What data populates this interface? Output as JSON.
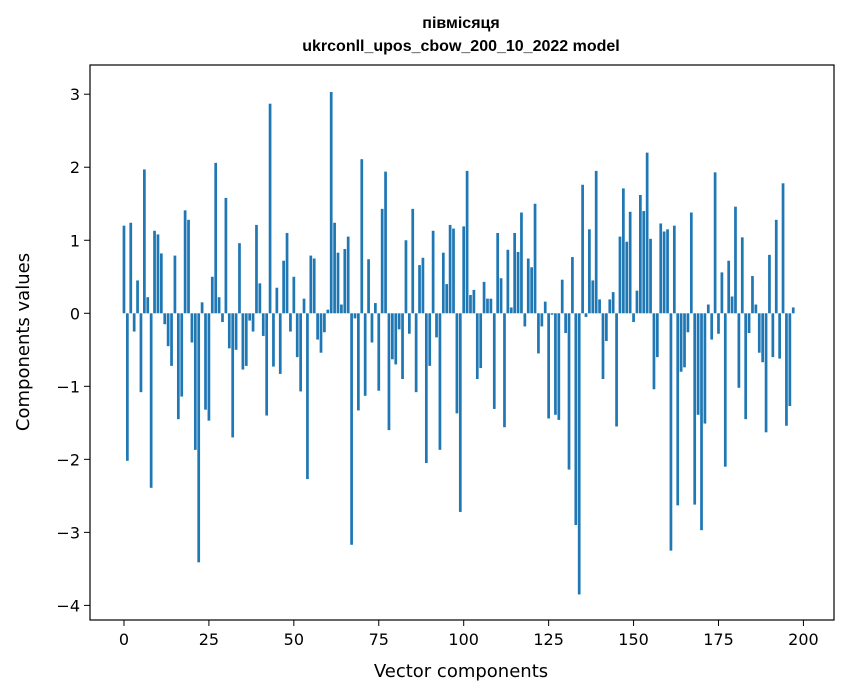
{
  "chart_data": {
    "type": "bar",
    "title_line1": "півмісяця",
    "title_line2": "ukrconll_upos_cbow_200_10_2022 model",
    "xlabel": "Vector components",
    "ylabel": "Components values",
    "xlim": [
      -10,
      209
    ],
    "ylim": [
      -4.2,
      3.4
    ],
    "xticks": [
      0,
      25,
      50,
      75,
      100,
      125,
      150,
      175,
      200
    ],
    "yticks": [
      -4,
      -3,
      -2,
      -1,
      0,
      1,
      2,
      3
    ],
    "bar_color": "#1f77b4",
    "values": [
      1.2,
      -2.02,
      1.24,
      -0.25,
      0.45,
      -1.08,
      1.97,
      0.22,
      -2.39,
      1.13,
      1.08,
      0.82,
      -0.15,
      -0.45,
      -0.72,
      0.79,
      -1.45,
      -1.14,
      1.41,
      1.28,
      -0.4,
      -1.87,
      -3.41,
      0.15,
      -1.32,
      -1.47,
      0.5,
      2.06,
      0.22,
      -0.12,
      1.58,
      -0.48,
      -1.7,
      -0.5,
      0.96,
      -0.77,
      -0.72,
      -0.1,
      -0.25,
      1.21,
      0.41,
      -0.31,
      -1.4,
      2.87,
      -0.73,
      0.35,
      -0.83,
      0.72,
      1.1,
      -0.25,
      0.5,
      -0.6,
      -1.07,
      0.2,
      -2.27,
      0.79,
      0.75,
      -0.36,
      -0.54,
      -0.26,
      0.05,
      3.03,
      1.24,
      0.83,
      0.12,
      0.88,
      1.05,
      -3.17,
      -0.07,
      -1.33,
      2.11,
      -1.13,
      0.74,
      -0.4,
      0.14,
      -1.06,
      1.43,
      1.94,
      -1.6,
      -0.63,
      -0.7,
      -0.22,
      -0.9,
      1.0,
      -0.28,
      1.43,
      -1.08,
      0.66,
      0.76,
      -2.05,
      -0.72,
      1.13,
      -0.33,
      -1.87,
      0.83,
      0.4,
      1.21,
      1.16,
      -1.37,
      -2.72,
      1.19,
      1.95,
      0.25,
      0.32,
      -0.9,
      -0.75,
      0.43,
      0.2,
      0.2,
      -1.31,
      1.1,
      0.48,
      -1.56,
      0.87,
      0.08,
      1.1,
      0.84,
      1.38,
      -0.18,
      0.75,
      0.63,
      1.5,
      -0.55,
      -0.18,
      0.16,
      -1.44,
      -0.02,
      -1.39,
      -1.46,
      0.46,
      -0.27,
      -2.14,
      0.77,
      -2.9,
      -3.85,
      1.76,
      -0.05,
      1.15,
      0.45,
      1.95,
      0.19,
      -0.9,
      -0.38,
      0.19,
      0.29,
      -1.55,
      1.05,
      1.71,
      0.98,
      1.39,
      -0.12,
      0.31,
      1.62,
      1.4,
      2.2,
      1.02,
      -1.04,
      -0.6,
      1.23,
      1.12,
      1.15,
      -3.25,
      1.2,
      -2.63,
      -0.8,
      -0.74,
      -0.26,
      1.38,
      -2.62,
      -1.39,
      -2.97,
      -1.51,
      0.12,
      -0.36,
      1.93,
      -0.28,
      0.56,
      -2.1,
      0.72,
      0.23,
      1.46,
      -1.02,
      1.04,
      -1.45,
      -0.27,
      0.51,
      0.12,
      -0.54,
      -0.67,
      -1.63,
      0.8,
      -0.6,
      1.28,
      -0.62,
      1.78,
      -1.54,
      -1.27,
      0.08
    ]
  }
}
